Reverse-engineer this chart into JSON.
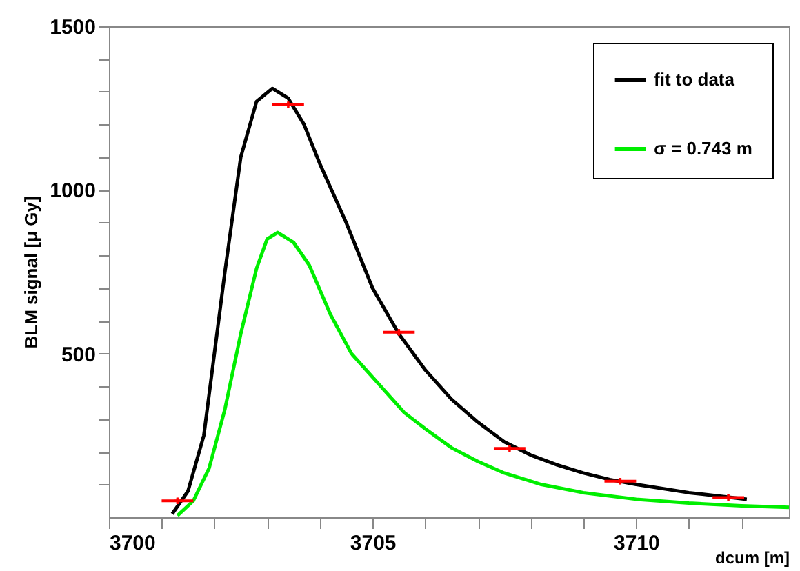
{
  "chart_data": {
    "type": "line",
    "xlabel": "dcum [m]",
    "ylabel": "BLM signal [μ Gy]",
    "xlim": [
      3700,
      3712.9
    ],
    "ylim": [
      0,
      1500
    ],
    "xticks": [
      3700,
      {
        "value": 3701,
        "label": null
      },
      {
        "value": 3702,
        "label": null
      },
      {
        "value": 3703,
        "label": null
      },
      {
        "value": 3704,
        "label": null
      },
      3705,
      {
        "value": 3706,
        "label": null
      },
      {
        "value": 3707,
        "label": null
      },
      {
        "value": 3708,
        "label": null
      },
      {
        "value": 3709,
        "label": null
      },
      3710,
      {
        "value": 3711,
        "label": null
      },
      {
        "value": 3712,
        "label": null
      }
    ],
    "yticks": [
      {
        "value": 100,
        "label": null
      },
      {
        "value": 200,
        "label": null
      },
      {
        "value": 300,
        "label": null
      },
      {
        "value": 400,
        "label": null
      },
      500,
      {
        "value": 600,
        "label": null
      },
      {
        "value": 700,
        "label": null
      },
      {
        "value": 800,
        "label": null
      },
      {
        "value": 900,
        "label": null
      },
      1000,
      {
        "value": 1100,
        "label": null
      },
      {
        "value": 1200,
        "label": null
      },
      {
        "value": 1300,
        "label": null
      },
      {
        "value": 1400,
        "label": null
      },
      1500
    ],
    "grid": false,
    "legend": "top right",
    "series": [
      {
        "name": "fit to data",
        "color": "#000000",
        "x": [
          3701.2,
          3701.5,
          3701.8,
          3702.0,
          3702.2,
          3702.5,
          3702.8,
          3703.1,
          3703.4,
          3703.7,
          3704.0,
          3704.5,
          3705.0,
          3705.5,
          3706.0,
          3706.5,
          3707.0,
          3707.5,
          3708.0,
          3708.5,
          3709.0,
          3709.5,
          3710.0,
          3711.0,
          3712.1
        ],
        "values": [
          10,
          80,
          250,
          500,
          750,
          1100,
          1270,
          1310,
          1280,
          1200,
          1080,
          900,
          700,
          560,
          450,
          360,
          290,
          230,
          190,
          160,
          135,
          115,
          100,
          75,
          55
        ]
      },
      {
        "name": "σ = 0.743 m",
        "color": "#00ee00",
        "x": [
          3701.3,
          3701.6,
          3701.9,
          3702.2,
          3702.5,
          3702.8,
          3703.0,
          3703.2,
          3703.5,
          3703.8,
          3704.2,
          3704.6,
          3705.1,
          3705.6,
          3706.0,
          3706.5,
          3707.0,
          3707.5,
          3708.2,
          3709.0,
          3710.0,
          3711.0,
          3712.0,
          3712.9
        ],
        "values": [
          5,
          50,
          150,
          330,
          560,
          760,
          850,
          870,
          840,
          770,
          620,
          500,
          410,
          320,
          270,
          212,
          170,
          135,
          100,
          75,
          55,
          43,
          35,
          30
        ]
      },
      {
        "type": "scatter",
        "color": "#ff0000",
        "marker": "cross",
        "x": [
          3701.3,
          3703.4,
          3705.5,
          3707.6,
          3709.7,
          3711.75
        ],
        "values": [
          50,
          1260,
          565,
          210,
          110,
          60
        ],
        "xerrors": [
          0.3,
          0.3,
          0.3,
          0.3,
          0.3,
          0.3
        ],
        "errors": [
          10,
          10,
          10,
          10,
          10,
          10
        ]
      }
    ]
  }
}
